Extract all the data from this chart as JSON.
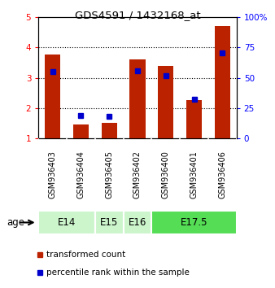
{
  "title": "GDS4591 / 1432168_at",
  "samples": [
    "GSM936403",
    "GSM936404",
    "GSM936405",
    "GSM936402",
    "GSM936400",
    "GSM936401",
    "GSM936406"
  ],
  "red_values": [
    3.78,
    1.45,
    1.5,
    3.62,
    3.4,
    2.25,
    4.72
  ],
  "blue_values": [
    3.2,
    1.75,
    1.72,
    3.22,
    3.07,
    2.3,
    3.82
  ],
  "age_groups": [
    {
      "label": "E14",
      "start": 0,
      "end": 2,
      "color": "#ccf5cc"
    },
    {
      "label": "E15",
      "start": 2,
      "end": 3,
      "color": "#ccf5cc"
    },
    {
      "label": "E16",
      "start": 3,
      "end": 4,
      "color": "#ccf5cc"
    },
    {
      "label": "E17.5",
      "start": 4,
      "end": 7,
      "color": "#55dd55"
    }
  ],
  "ylim_left": [
    1,
    5
  ],
  "ylim_right": [
    0,
    100
  ],
  "yticks_left": [
    1,
    2,
    3,
    4,
    5
  ],
  "yticks_right": [
    0,
    25,
    50,
    75,
    100
  ],
  "ytick_labels_right": [
    "0",
    "25",
    "50",
    "75",
    "100%"
  ],
  "bar_color": "#bb2200",
  "marker_color": "#0000cc",
  "bg_color": "#ffffff",
  "grid_color": "#000000",
  "sample_bg": "#c8c8c8",
  "legend_red": "transformed count",
  "legend_blue": "percentile rank within the sample",
  "age_label": "age"
}
